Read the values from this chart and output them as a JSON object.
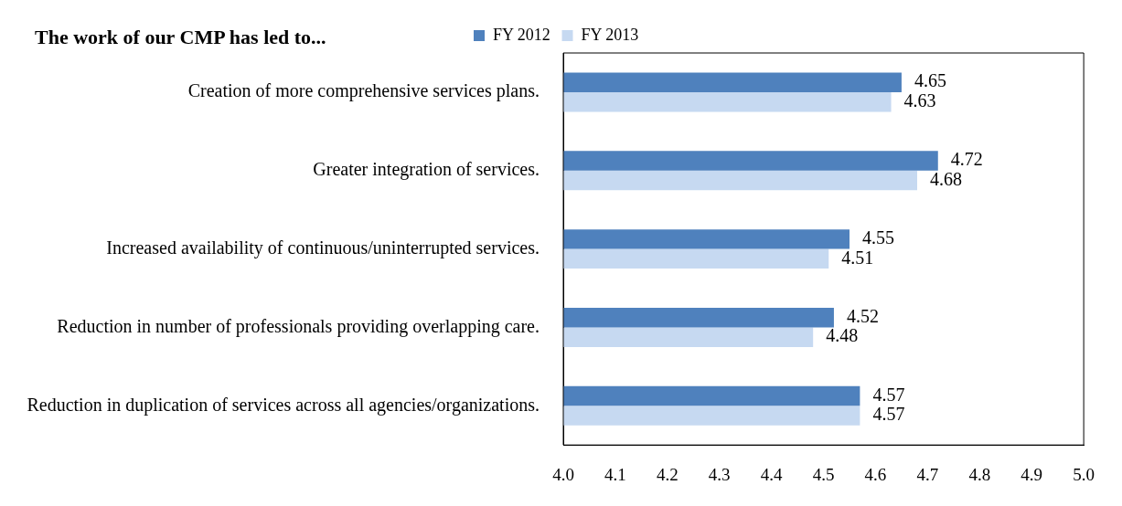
{
  "chart_data": {
    "type": "bar",
    "orientation": "horizontal",
    "title": "The work of our CMP has led to...",
    "categories": [
      "Creation of more comprehensive services plans.",
      "Greater integration of services.",
      "Increased availability of continuous/uninterrupted services.",
      "Reduction in number of professionals providing overlapping care.",
      "Reduction in duplication of services across all agencies/organizations."
    ],
    "series": [
      {
        "name": "FY 2012",
        "color": "#4f81bd",
        "values": [
          4.65,
          4.72,
          4.55,
          4.52,
          4.57
        ]
      },
      {
        "name": "FY 2013",
        "color": "#c6d9f1",
        "values": [
          4.63,
          4.68,
          4.51,
          4.48,
          4.57
        ]
      }
    ],
    "xlim": [
      4.0,
      5.0
    ],
    "xticks": [
      {
        "value": 4.0,
        "label": "4.0"
      },
      {
        "value": 4.1,
        "label": "4.1"
      },
      {
        "value": 4.2,
        "label": "4.2"
      },
      {
        "value": 4.3,
        "label": "4.3"
      },
      {
        "value": 4.4,
        "label": "4.4"
      },
      {
        "value": 4.5,
        "label": "4.5"
      },
      {
        "value": 4.6,
        "label": "4.6"
      },
      {
        "value": 4.7,
        "label": "4.7"
      },
      {
        "value": 4.8,
        "label": "4.8"
      },
      {
        "value": 4.9,
        "label": "4.9"
      },
      {
        "value": 5.0,
        "label": "5.0"
      }
    ],
    "data_labels": true,
    "grid": false,
    "legend": "top"
  }
}
